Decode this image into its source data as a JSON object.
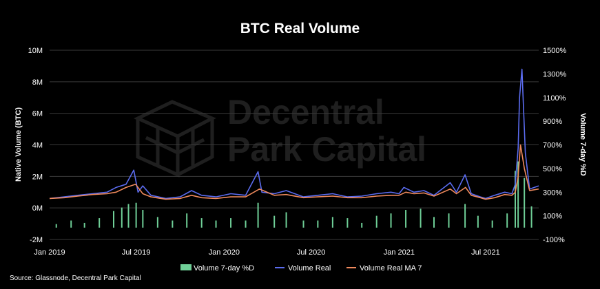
{
  "chart_data": {
    "type": "bar",
    "title": "BTC Real Volume",
    "ylabel_left": "Native Volume (BTC)",
    "ylabel_right": "Volume 7-day %D",
    "left_axis_ticks": [
      "10M",
      "8M",
      "6M",
      "4M",
      "2M",
      "0M",
      "-2M"
    ],
    "left_axis_range": [
      -2000000,
      10000000
    ],
    "right_axis_ticks": [
      "1500%",
      "1300%",
      "1100%",
      "900%",
      "700%",
      "500%",
      "300%",
      "100%",
      "-100%"
    ],
    "right_axis_range": [
      -100,
      1500
    ],
    "x_ticks": [
      "Jan 2019",
      "Jul 2019",
      "Jan 2020",
      "Jul 2020",
      "Jan 2021",
      "Jul 2021"
    ],
    "x_range": [
      "2019-01-01",
      "2021-10-20"
    ],
    "grid": true,
    "legend_position": "bottom",
    "series": [
      {
        "name": "Volume 7-day %D",
        "kind": "bar",
        "axis": "right",
        "color": "#6fcf97",
        "x": [
          "2019-01-15",
          "2019-02-15",
          "2019-03-15",
          "2019-04-15",
          "2019-05-15",
          "2019-06-01",
          "2019-06-15",
          "2019-07-01",
          "2019-07-15",
          "2019-08-15",
          "2019-09-15",
          "2019-10-15",
          "2019-11-15",
          "2019-12-15",
          "2020-01-15",
          "2020-02-15",
          "2020-03-12",
          "2020-04-15",
          "2020-05-10",
          "2020-06-15",
          "2020-07-15",
          "2020-08-15",
          "2020-09-15",
          "2020-10-15",
          "2020-11-15",
          "2020-12-15",
          "2021-01-15",
          "2021-02-15",
          "2021-03-15",
          "2021-04-15",
          "2021-05-19",
          "2021-06-15",
          "2021-07-15",
          "2021-08-15",
          "2021-09-01",
          "2021-09-07",
          "2021-09-20",
          "2021-10-05"
        ],
        "values": [
          30,
          60,
          40,
          80,
          140,
          170,
          200,
          210,
          150,
          90,
          60,
          120,
          80,
          60,
          80,
          60,
          210,
          100,
          130,
          60,
          60,
          90,
          80,
          40,
          100,
          120,
          150,
          160,
          90,
          120,
          200,
          100,
          60,
          120,
          480,
          560,
          420,
          180
        ]
      },
      {
        "name": "Volume Real",
        "kind": "line",
        "axis": "left",
        "color": "#5b6cf0",
        "x": [
          "2019-01-01",
          "2019-02-01",
          "2019-03-01",
          "2019-04-01",
          "2019-05-01",
          "2019-05-20",
          "2019-06-10",
          "2019-06-26",
          "2019-07-05",
          "2019-07-15",
          "2019-08-01",
          "2019-09-01",
          "2019-10-01",
          "2019-10-25",
          "2019-11-15",
          "2019-12-15",
          "2020-01-15",
          "2020-02-15",
          "2020-03-12",
          "2020-03-20",
          "2020-04-15",
          "2020-05-10",
          "2020-06-15",
          "2020-07-15",
          "2020-08-15",
          "2020-09-15",
          "2020-10-15",
          "2020-11-15",
          "2020-12-15",
          "2021-01-01",
          "2021-01-11",
          "2021-02-01",
          "2021-02-22",
          "2021-03-15",
          "2021-04-18",
          "2021-05-01",
          "2021-05-19",
          "2021-06-01",
          "2021-06-20",
          "2021-07-01",
          "2021-07-20",
          "2021-08-10",
          "2021-08-25",
          "2021-09-01",
          "2021-09-07",
          "2021-09-10",
          "2021-09-15",
          "2021-09-22",
          "2021-10-01",
          "2021-10-20"
        ],
        "values": [
          600000,
          700000,
          800000,
          900000,
          1000000,
          1300000,
          1500000,
          2400000,
          1000000,
          1400000,
          800000,
          600000,
          700000,
          1100000,
          800000,
          700000,
          900000,
          800000,
          2300000,
          1000000,
          900000,
          1100000,
          700000,
          800000,
          900000,
          700000,
          750000,
          900000,
          1000000,
          900000,
          1300000,
          1000000,
          1100000,
          800000,
          1600000,
          1000000,
          2100000,
          900000,
          700000,
          600000,
          800000,
          1000000,
          900000,
          1500000,
          3800000,
          7000000,
          8800000,
          3500000,
          1200000,
          1400000
        ]
      },
      {
        "name": "Volume Real MA 7",
        "kind": "line",
        "axis": "left",
        "color": "#f08a5d",
        "x": [
          "2019-01-01",
          "2019-02-01",
          "2019-03-01",
          "2019-04-01",
          "2019-05-01",
          "2019-05-20",
          "2019-06-10",
          "2019-06-30",
          "2019-07-15",
          "2019-08-01",
          "2019-09-01",
          "2019-10-01",
          "2019-10-25",
          "2019-11-15",
          "2019-12-15",
          "2020-01-15",
          "2020-02-15",
          "2020-03-15",
          "2020-04-15",
          "2020-05-10",
          "2020-06-15",
          "2020-07-15",
          "2020-08-15",
          "2020-09-15",
          "2020-10-15",
          "2020-11-15",
          "2020-12-15",
          "2021-01-01",
          "2021-01-15",
          "2021-02-01",
          "2021-02-22",
          "2021-03-15",
          "2021-04-18",
          "2021-05-01",
          "2021-05-20",
          "2021-06-01",
          "2021-06-20",
          "2021-07-01",
          "2021-07-20",
          "2021-08-10",
          "2021-08-25",
          "2021-09-01",
          "2021-09-07",
          "2021-09-12",
          "2021-09-20",
          "2021-10-01",
          "2021-10-20"
        ],
        "values": [
          600000,
          650000,
          750000,
          850000,
          900000,
          1000000,
          1300000,
          1500000,
          900000,
          700000,
          550000,
          600000,
          800000,
          650000,
          600000,
          700000,
          700000,
          1200000,
          800000,
          850000,
          650000,
          700000,
          750000,
          650000,
          650000,
          750000,
          800000,
          800000,
          1000000,
          900000,
          950000,
          750000,
          1200000,
          900000,
          1300000,
          800000,
          650000,
          550000,
          650000,
          850000,
          800000,
          1000000,
          2000000,
          4000000,
          2500000,
          1100000,
          1200000
        ]
      }
    ]
  },
  "watermark": {
    "line1": "Decentral",
    "line2": "Park Capital"
  },
  "source": "Source: Glassnode, Decentral Park Capital"
}
